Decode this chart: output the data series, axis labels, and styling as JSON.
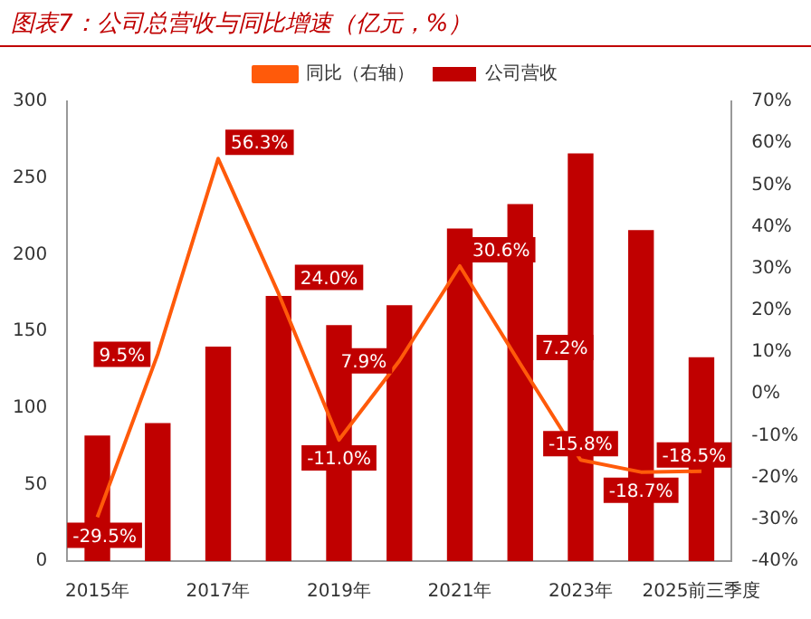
{
  "chart_data": {
    "type": "bar",
    "title": "图表7：公司总营收与同比增速（亿元，%）",
    "categories": [
      "2015年",
      null,
      "2017年",
      null,
      "2019年",
      null,
      "2021年",
      null,
      "2023年",
      null,
      "2025前三季度"
    ],
    "series": [
      {
        "name": "公司营收",
        "color": "#c00000",
        "values": [
          82,
          90,
          140,
          173,
          154,
          167,
          217,
          233,
          266,
          216,
          133
        ]
      },
      {
        "name": "同比（右轴）",
        "type": "line",
        "axis": "y2",
        "color": "#ff5a0a",
        "values": [
          -29.5,
          9.5,
          56.3,
          24.0,
          -11.0,
          7.9,
          30.6,
          7.2,
          -15.8,
          -18.7,
          -18.5
        ],
        "value_labels": [
          "-29.5%",
          "9.5%",
          "56.3%",
          "24.0%",
          "-11.0%",
          "7.9%",
          "30.6%",
          "7.2%",
          "-15.8%",
          "-18.7%",
          "-18.5%"
        ]
      }
    ],
    "ylim": [
      0,
      300
    ],
    "yticks": [
      0,
      50,
      100,
      150,
      200,
      250,
      300
    ],
    "y2lim": [
      -40,
      70
    ],
    "y2ticks": [
      {
        "value": -40,
        "label": "-40%"
      },
      {
        "value": -30,
        "label": "-30%"
      },
      {
        "value": -20,
        "label": "-20%"
      },
      {
        "value": -10,
        "label": "-10%"
      },
      {
        "value": 0,
        "label": "0%"
      },
      {
        "value": 10,
        "label": "10%"
      },
      {
        "value": 20,
        "label": "20%"
      },
      {
        "value": 30,
        "label": "30%"
      },
      {
        "value": 40,
        "label": "40%"
      },
      {
        "value": 50,
        "label": "50%"
      },
      {
        "value": 60,
        "label": "60%"
      },
      {
        "value": 70,
        "label": "70%"
      }
    ],
    "grid": false,
    "legend": "top",
    "marker": "none",
    "line_style": "solid"
  }
}
